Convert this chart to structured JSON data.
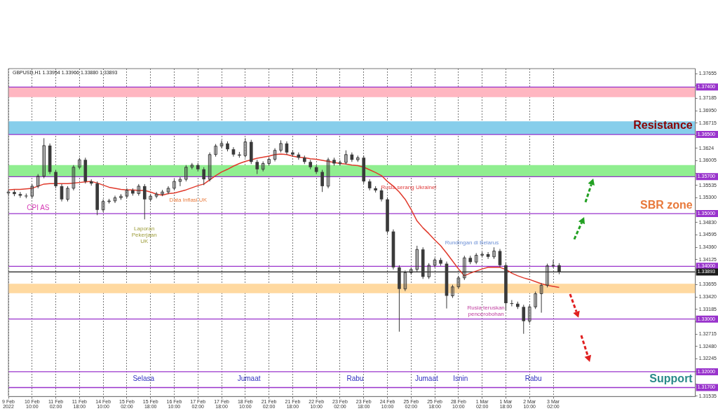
{
  "chart_data": {
    "type": "candlestick",
    "title": "GBPUSD,H1 1.33954 1.33966 1.33880 1.33893",
    "categories": [
      "9 Feb 2022",
      null,
      null,
      null,
      "10 Feb 10:00",
      null,
      null,
      null,
      "11 Feb 02:00",
      null,
      null,
      null,
      "11 Feb 18:00",
      null,
      null,
      null,
      "14 Feb 10:00",
      null,
      null,
      null,
      "15 Feb 02:00",
      null,
      null,
      null,
      "15 Feb 18:00",
      null,
      null,
      null,
      "16 Feb 10:00",
      null,
      null,
      null,
      "17 Feb 02:00",
      null,
      null,
      null,
      "17 Feb 18:00",
      null,
      null,
      null,
      "18 Feb 10:00",
      null,
      null,
      null,
      "21 Feb 02:00",
      null,
      null,
      null,
      "21 Feb 18:00",
      null,
      null,
      null,
      "22 Feb 10:00",
      null,
      null,
      null,
      "23 Feb 02:00",
      null,
      null,
      null,
      "23 Feb 18:00",
      null,
      null,
      null,
      "24 Feb 10:00",
      null,
      null,
      null,
      "25 Feb 02:00",
      null,
      null,
      null,
      "25 Feb 18:00",
      null,
      null,
      null,
      "28 Feb 10:00",
      null,
      null,
      null,
      "1 Mar 02:00",
      null,
      null,
      null,
      "1 Mar 18:00",
      null,
      null,
      null,
      "2 Mar 10:00",
      null,
      null,
      null,
      "3 Mar 02:00",
      null,
      null,
      null,
      null,
      null,
      null,
      null,
      null,
      null,
      null,
      null,
      null,
      null,
      null,
      null,
      null,
      null,
      null,
      null,
      null,
      null,
      null,
      null,
      null
    ],
    "color": "#3a3a3a",
    "ohlc": [
      [
        1.3539,
        1.3545,
        1.3535,
        1.3541
      ],
      [
        1.3541,
        1.3545,
        1.3533,
        1.3537
      ],
      [
        1.3537,
        1.3541,
        1.353,
        1.3534
      ],
      [
        1.3534,
        1.3538,
        1.3529,
        1.3533
      ],
      [
        1.3533,
        1.3556,
        1.3529,
        1.3552
      ],
      [
        1.3552,
        1.3575,
        1.3548,
        1.3571
      ],
      [
        1.3571,
        1.3643,
        1.3567,
        1.3629
      ],
      [
        1.3629,
        1.3633,
        1.3575,
        1.3579
      ],
      [
        1.3579,
        1.3583,
        1.3548,
        1.3552
      ],
      [
        1.3552,
        1.3556,
        1.3523,
        1.3527
      ],
      [
        1.3527,
        1.3552,
        1.3523,
        1.3548
      ],
      [
        1.3548,
        1.3592,
        1.3544,
        1.3588
      ],
      [
        1.3588,
        1.3606,
        1.3584,
        1.3602
      ],
      [
        1.3602,
        1.3606,
        1.3557,
        1.3561
      ],
      [
        1.3561,
        1.3565,
        1.3553,
        1.3557
      ],
      [
        1.3557,
        1.3561,
        1.3497,
        1.3507
      ],
      [
        1.3507,
        1.3527,
        1.3503,
        1.3523
      ],
      [
        1.3523,
        1.3528,
        1.3519,
        1.3524
      ],
      [
        1.3524,
        1.3534,
        1.352,
        1.353
      ],
      [
        1.353,
        1.3537,
        1.3526,
        1.3533
      ],
      [
        1.3533,
        1.3548,
        1.3529,
        1.3544
      ],
      [
        1.3544,
        1.3548,
        1.3534,
        1.3538
      ],
      [
        1.3538,
        1.3556,
        1.3534,
        1.3552
      ],
      [
        1.3552,
        1.3556,
        1.3489,
        1.3527
      ],
      [
        1.3527,
        1.3537,
        1.3523,
        1.3533
      ],
      [
        1.3533,
        1.3541,
        1.3529,
        1.3537
      ],
      [
        1.3537,
        1.3545,
        1.3533,
        1.3541
      ],
      [
        1.3541,
        1.3552,
        1.3537,
        1.3548
      ],
      [
        1.3548,
        1.3565,
        1.3544,
        1.3561
      ],
      [
        1.3561,
        1.3569,
        1.3552,
        1.3565
      ],
      [
        1.3565,
        1.3592,
        1.3561,
        1.3588
      ],
      [
        1.3588,
        1.3596,
        1.3584,
        1.3592
      ],
      [
        1.3592,
        1.3596,
        1.358,
        1.3584
      ],
      [
        1.3584,
        1.3588,
        1.3554,
        1.3565
      ],
      [
        1.3565,
        1.3616,
        1.3561,
        1.3612
      ],
      [
        1.3612,
        1.3632,
        1.3608,
        1.3628
      ],
      [
        1.3628,
        1.3639,
        1.3624,
        1.3633
      ],
      [
        1.3633,
        1.3637,
        1.3618,
        1.3622
      ],
      [
        1.3622,
        1.3626,
        1.3608,
        1.3612
      ],
      [
        1.3612,
        1.3617,
        1.3606,
        1.361
      ],
      [
        1.361,
        1.3643,
        1.3606,
        1.3636
      ],
      [
        1.3636,
        1.364,
        1.3594,
        1.3598
      ],
      [
        1.3598,
        1.3602,
        1.3575,
        1.3584
      ],
      [
        1.3584,
        1.3599,
        1.358,
        1.3595
      ],
      [
        1.3595,
        1.3607,
        1.3591,
        1.3603
      ],
      [
        1.3603,
        1.3624,
        1.3599,
        1.362
      ],
      [
        1.362,
        1.3639,
        1.3616,
        1.3633
      ],
      [
        1.3633,
        1.3637,
        1.3612,
        1.3616
      ],
      [
        1.3616,
        1.362,
        1.3608,
        1.3612
      ],
      [
        1.3612,
        1.3616,
        1.3602,
        1.3606
      ],
      [
        1.3606,
        1.361,
        1.3594,
        1.3598
      ],
      [
        1.3598,
        1.3602,
        1.3584,
        1.3588
      ],
      [
        1.3588,
        1.3592,
        1.3575,
        1.3579
      ],
      [
        1.3579,
        1.3583,
        1.3541,
        1.3552
      ],
      [
        1.3552,
        1.3606,
        1.3548,
        1.3602
      ],
      [
        1.3602,
        1.3606,
        1.3591,
        1.3595
      ],
      [
        1.3595,
        1.3601,
        1.3591,
        1.3597
      ],
      [
        1.3597,
        1.362,
        1.3593,
        1.3612
      ],
      [
        1.3612,
        1.3616,
        1.3598,
        1.3602
      ],
      [
        1.3602,
        1.361,
        1.3598,
        1.3606
      ],
      [
        1.3606,
        1.361,
        1.3557,
        1.3561
      ],
      [
        1.3561,
        1.3565,
        1.3544,
        1.3548
      ],
      [
        1.3548,
        1.3552,
        1.354,
        1.3544
      ],
      [
        1.3544,
        1.3548,
        1.3523,
        1.3527
      ],
      [
        1.3527,
        1.3531,
        1.3462,
        1.3466
      ],
      [
        1.3466,
        1.347,
        1.3394,
        1.3398
      ],
      [
        1.3398,
        1.3402,
        1.3276,
        1.3357
      ],
      [
        1.3357,
        1.3392,
        1.3353,
        1.3388
      ],
      [
        1.3388,
        1.3398,
        1.3384,
        1.3394
      ],
      [
        1.3394,
        1.3439,
        1.339,
        1.3432
      ],
      [
        1.3432,
        1.3436,
        1.3376,
        1.338
      ],
      [
        1.338,
        1.3406,
        1.3376,
        1.3402
      ],
      [
        1.3402,
        1.3416,
        1.3398,
        1.3412
      ],
      [
        1.3412,
        1.3416,
        1.3401,
        1.3405
      ],
      [
        1.3405,
        1.3409,
        1.332,
        1.3344
      ],
      [
        1.3344,
        1.3365,
        1.334,
        1.3361
      ],
      [
        1.3361,
        1.3382,
        1.3357,
        1.3378
      ],
      [
        1.3378,
        1.342,
        1.3374,
        1.3416
      ],
      [
        1.3416,
        1.342,
        1.3404,
        1.3408
      ],
      [
        1.3408,
        1.3425,
        1.3404,
        1.3421
      ],
      [
        1.3421,
        1.3427,
        1.3417,
        1.3423
      ],
      [
        1.3423,
        1.3427,
        1.3414,
        1.3418
      ],
      [
        1.3418,
        1.3436,
        1.3414,
        1.3429
      ],
      [
        1.3429,
        1.3433,
        1.3398,
        1.3402
      ],
      [
        1.3402,
        1.3406,
        1.3316,
        1.333
      ],
      [
        1.333,
        1.3336,
        1.3324,
        1.3329
      ],
      [
        1.3329,
        1.3333,
        1.3319,
        1.3323
      ],
      [
        1.3323,
        1.3327,
        1.3272,
        1.3296
      ],
      [
        1.3296,
        1.3327,
        1.3292,
        1.3323
      ],
      [
        1.3323,
        1.3352,
        1.3319,
        1.3348
      ],
      [
        1.3348,
        1.3368,
        1.3312,
        1.3364
      ],
      [
        1.3364,
        1.3405,
        1.336,
        1.3401
      ],
      [
        1.3401,
        1.3412,
        1.3397,
        1.3402
      ],
      [
        1.3402,
        1.3406,
        1.3385,
        1.3389
      ],
      null,
      null,
      null,
      null,
      null,
      null,
      null,
      null,
      null,
      null,
      null,
      null,
      null,
      null,
      null,
      null,
      null,
      null,
      null,
      null,
      null,
      null,
      null
    ],
    "series": [
      {
        "type": "line",
        "color": "#e0392b",
        "values": [
          1.3545,
          1.3546,
          1.3546,
          1.3547,
          1.3548,
          1.3552,
          1.3556,
          1.3557,
          1.3557,
          1.3557,
          1.3557,
          1.3558,
          1.3559,
          1.356,
          1.3561,
          1.3558,
          1.3554,
          1.355,
          1.3548,
          1.3546,
          1.3545,
          1.3545,
          1.3544,
          1.3544,
          1.3541,
          1.3537,
          1.3535,
          1.3538,
          1.3539,
          1.3542,
          1.3545,
          1.3549,
          1.3553,
          1.3556,
          1.3564,
          1.3572,
          1.3579,
          1.3584,
          1.359,
          1.3595,
          1.3599,
          1.3602,
          1.3605,
          1.3607,
          1.3609,
          1.3612,
          1.3613,
          1.3612,
          1.3609,
          1.3607,
          1.3606,
          1.3604,
          1.3603,
          1.3601,
          1.3599,
          1.3597,
          1.3595,
          1.3594,
          1.3592,
          1.3591,
          1.3588,
          1.3583,
          1.3578,
          1.3572,
          1.3561,
          1.3552,
          1.3541,
          1.3527,
          1.3508,
          1.3486,
          1.3473,
          1.3462,
          1.345,
          1.3439,
          1.3425,
          1.341,
          1.3395,
          1.3382,
          1.3387,
          1.3391,
          1.3395,
          1.3398,
          1.3398,
          1.3398,
          1.3394,
          1.3387,
          1.3382,
          1.3378,
          1.3375,
          1.3371,
          1.3367,
          1.3364,
          1.3362,
          1.336,
          null,
          null,
          null,
          null,
          null,
          null,
          null,
          null,
          null,
          null,
          null,
          null,
          null,
          null,
          null,
          null,
          null,
          null,
          null,
          null,
          null,
          null,
          null
        ]
      }
    ],
    "ylim": [
      1.3153,
      1.3775
    ],
    "yticks": [
      1.37655,
      {
        "value": 1.3742,
        "label": null
      },
      1.37185,
      {
        "value": 1.3695,
        "label": "1.36950"
      },
      1.36715,
      {
        "value": 1.3648,
        "label": null
      },
      1.3624,
      1.36005,
      {
        "value": 1.3577,
        "label": null
      },
      1.35535,
      {
        "value": 1.353,
        "label": "1.35300"
      },
      {
        "value": 1.35065,
        "label": null
      },
      {
        "value": 1.3483,
        "label": "1.34830"
      },
      1.34595,
      {
        "value": 1.3436,
        "label": "1.34360"
      },
      1.34125,
      {
        "value": 1.3389,
        "label": null
      },
      1.33655,
      {
        "value": 1.3342,
        "label": "1.33420"
      },
      1.33185,
      {
        "value": 1.3295,
        "label": null
      },
      1.32715,
      {
        "value": 1.3248,
        "label": "1.32480"
      },
      1.32245,
      {
        "value": 1.3201,
        "label": null
      },
      {
        "value": 1.3177,
        "label": null
      },
      1.31535
    ],
    "grid": "x",
    "bands": [
      {
        "axis": "y",
        "from": 1.3721,
        "to": 1.374,
        "color": "#ffb6c1"
      },
      {
        "axis": "y",
        "from": 1.365,
        "to": 1.3675,
        "color": "#87ceeb"
      },
      {
        "axis": "y",
        "from": 1.357,
        "to": 1.3592,
        "color": "#90ee90"
      },
      {
        "axis": "y",
        "from": 1.3349,
        "to": 1.3367,
        "color": "#ffd9a0"
      }
    ],
    "ref_lines": [
      {
        "axis": "y",
        "value": 1.374,
        "label": "1.37400",
        "color": "#9933cc"
      },
      {
        "axis": "y",
        "value": 1.365,
        "label": "1.36500",
        "color": "#9933cc"
      },
      {
        "axis": "y",
        "value": 1.357,
        "label": "1.35700",
        "color": "#9933cc"
      },
      {
        "axis": "y",
        "value": 1.35,
        "label": "1.35000",
        "color": "#9933cc"
      },
      {
        "axis": "y",
        "value": 1.34,
        "label": "1.34000",
        "color": "#9933cc"
      },
      {
        "axis": "y",
        "value": 1.33,
        "label": "1.33000",
        "color": "#9933cc"
      },
      {
        "axis": "y",
        "value": 1.32,
        "label": "1.32000",
        "color": "#9933cc"
      },
      {
        "axis": "y",
        "value": 1.317,
        "label": "1.31700",
        "color": "#9933cc"
      },
      {
        "axis": "y",
        "value": 1.33893,
        "label": "1.33893",
        "color": "#1a1a1a"
      }
    ],
    "annotations": [
      "CPI AS",
      "Data Inflasi UK",
      "Laporan Pekerjaan UK",
      "Rusia serang Ukraine!",
      "Rundingan di Belarus",
      "Rusia teruskan pencerobohan",
      "Selasa",
      "Jumaat",
      "Rabu",
      "Jumaat",
      "Isnin",
      "Rabu",
      "Resistance",
      "SBR zone",
      "Support"
    ]
  }
}
